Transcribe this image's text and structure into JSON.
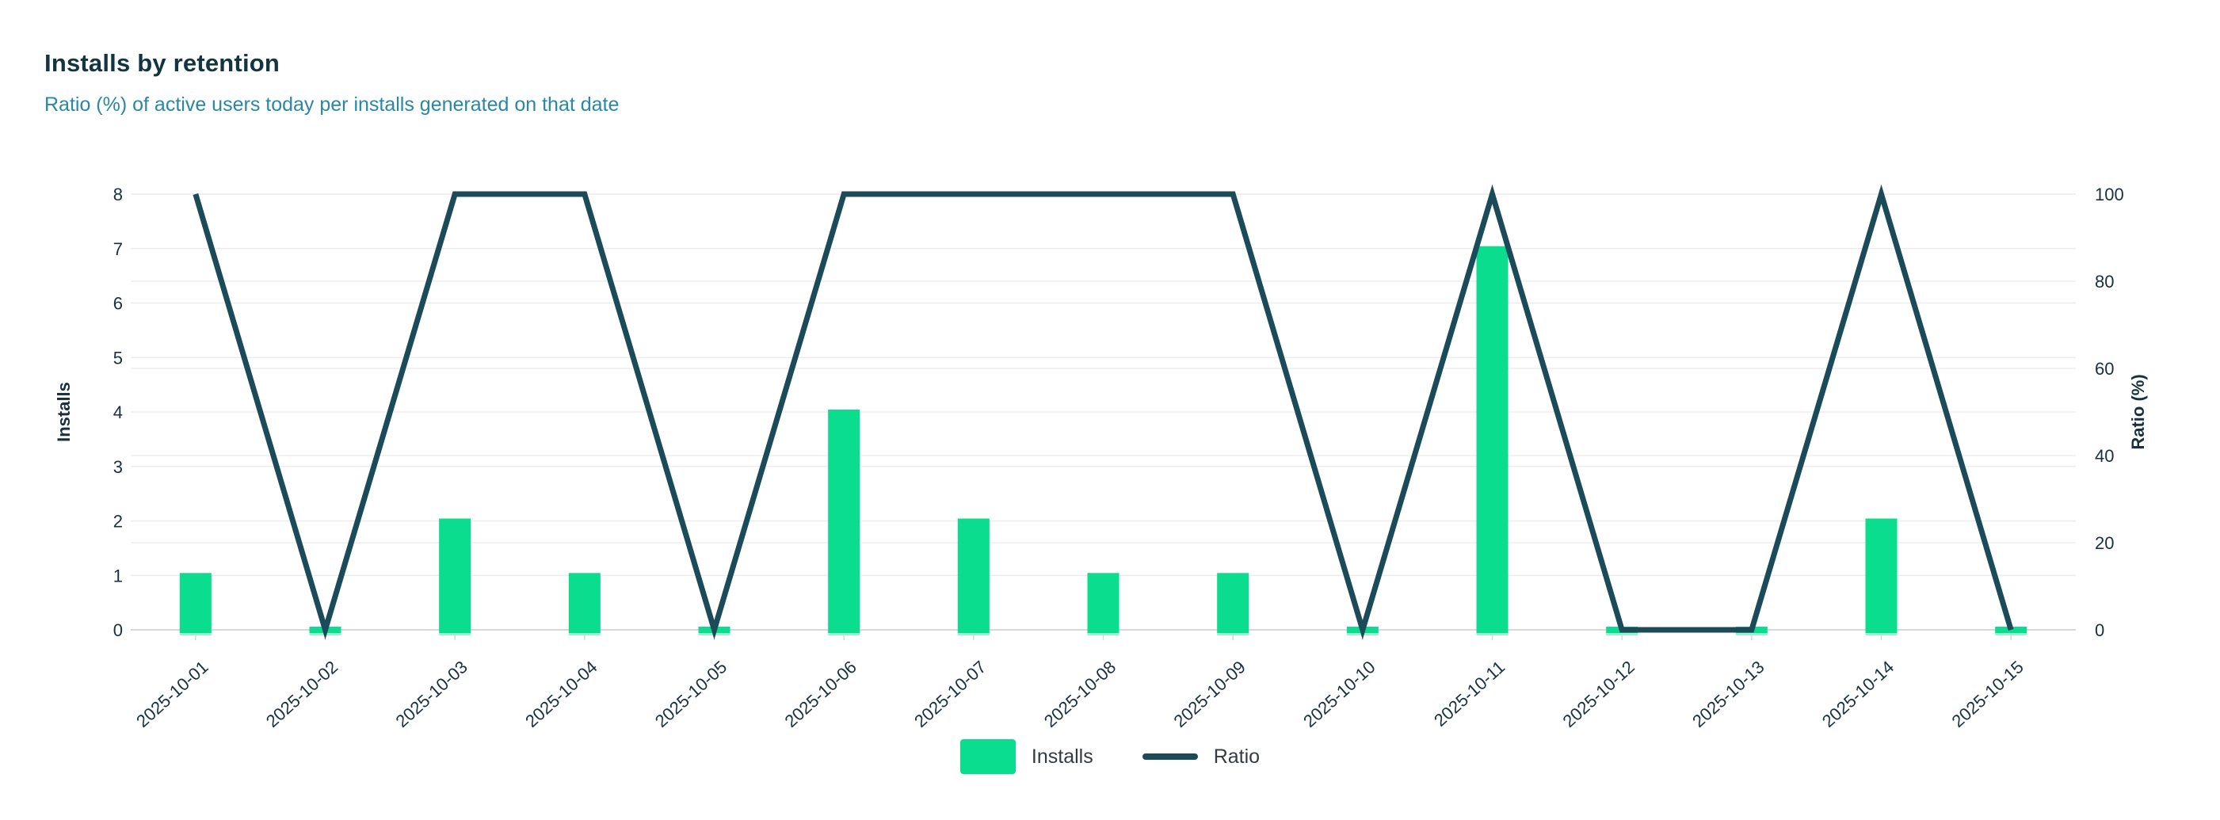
{
  "header": {
    "title": "Installs by retention",
    "subtitle": "Ratio (%) of active users today per installs generated on that date"
  },
  "chart_data": {
    "type": "bar",
    "title": "Installs by retention",
    "subtitle": "Ratio (%) of active users today per installs generated on that date",
    "categories": [
      "2025-10-01",
      "2025-10-02",
      "2025-10-03",
      "2025-10-04",
      "2025-10-05",
      "2025-10-06",
      "2025-10-07",
      "2025-10-08",
      "2025-10-09",
      "2025-10-10",
      "2025-10-11",
      "2025-10-12",
      "2025-10-13",
      "2025-10-14",
      "2025-10-15"
    ],
    "series": [
      {
        "name": "Installs",
        "kind": "bar",
        "axis": "left",
        "values": [
          1,
          0,
          2,
          1,
          0,
          4,
          2,
          1,
          1,
          0,
          7,
          0,
          0,
          2,
          0
        ]
      },
      {
        "name": "Ratio",
        "kind": "line",
        "axis": "right",
        "values": [
          100,
          0,
          100,
          100,
          0,
          100,
          100,
          100,
          100,
          0,
          100,
          0,
          0,
          100,
          0
        ]
      }
    ],
    "axes": {
      "left": {
        "label": "Installs",
        "min": 0,
        "max": 8,
        "ticks": [
          0,
          1,
          2,
          3,
          4,
          5,
          6,
          7,
          8
        ]
      },
      "right": {
        "label": "Ratio (%)",
        "min": 0,
        "max": 100,
        "ticks": [
          0,
          20,
          40,
          60,
          80,
          100
        ]
      }
    },
    "xlabel": "",
    "grid": true,
    "legend": {
      "position": "bottom-center",
      "items": [
        {
          "label": "Installs",
          "marker": "square"
        },
        {
          "label": "Ratio",
          "marker": "line"
        }
      ]
    }
  },
  "colors": {
    "title": "#123540",
    "subtitle": "#2988a4",
    "axis_text": "#17323e",
    "grid": "#ededed",
    "axis_line": "#d8d8d8",
    "bar": "#0add8d",
    "bar_base": "#9bf2d2",
    "line": "#1b4a59",
    "legend_text": "#333b42",
    "background": "#ffffff"
  }
}
